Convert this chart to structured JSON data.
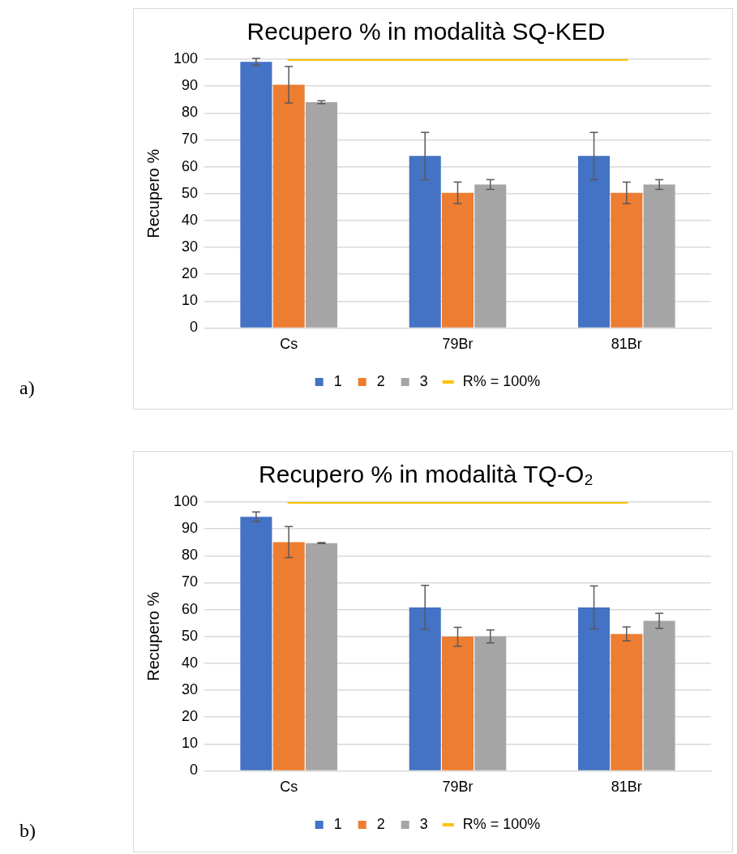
{
  "chart_data": [
    {
      "type": "bar",
      "title": "Recupero % in modalità SQ-KED",
      "ylabel": "Recupero %",
      "categories": [
        "Cs",
        "79Br",
        "81Br"
      ],
      "ylim": [
        0,
        100
      ],
      "yticks": [
        0,
        10,
        20,
        30,
        40,
        50,
        60,
        70,
        80,
        90,
        100
      ],
      "grid": "y",
      "legend": "bottom",
      "annotations": [
        "a)"
      ],
      "series": [
        {
          "name": "1",
          "color": "#4472c4",
          "values": [
            99,
            64,
            64
          ],
          "errors": [
            1.3,
            8.8,
            8.8
          ]
        },
        {
          "name": "2",
          "color": "#ed7d31",
          "values": [
            90.5,
            50.3,
            50.3
          ],
          "errors": [
            6.8,
            4,
            4
          ]
        },
        {
          "name": "3",
          "color": "#a5a5a5",
          "values": [
            84,
            53.4,
            53.4
          ],
          "errors": [
            0.5,
            1.8,
            1.8
          ]
        },
        {
          "name": "R% = 100%",
          "type": "line",
          "color": "#ffc000",
          "values": [
            100,
            100,
            100
          ],
          "marker": "none"
        }
      ]
    },
    {
      "type": "bar",
      "title": "Recupero % in modalità TQ-O₂",
      "ylabel": "Recupero %",
      "categories": [
        "Cs",
        "79Br",
        "81Br"
      ],
      "ylim": [
        0,
        100
      ],
      "yticks": [
        0,
        10,
        20,
        30,
        40,
        50,
        60,
        70,
        80,
        90,
        100
      ],
      "grid": "y",
      "legend": "bottom",
      "annotations": [
        "b)"
      ],
      "series": [
        {
          "name": "1",
          "color": "#4472c4",
          "values": [
            94.5,
            60.8,
            60.8
          ],
          "errors": [
            1.8,
            8.2,
            8
          ]
        },
        {
          "name": "2",
          "color": "#ed7d31",
          "values": [
            85.1,
            49.9,
            50.9
          ],
          "errors": [
            5.8,
            3.5,
            2.6
          ]
        },
        {
          "name": "3",
          "color": "#a5a5a5",
          "values": [
            84.7,
            50,
            55.8
          ],
          "errors": [
            0.2,
            2.4,
            2.8
          ]
        },
        {
          "name": "R% = 100%",
          "type": "line",
          "color": "#ffc000",
          "values": [
            100,
            100,
            100
          ],
          "marker": "none"
        }
      ]
    }
  ]
}
